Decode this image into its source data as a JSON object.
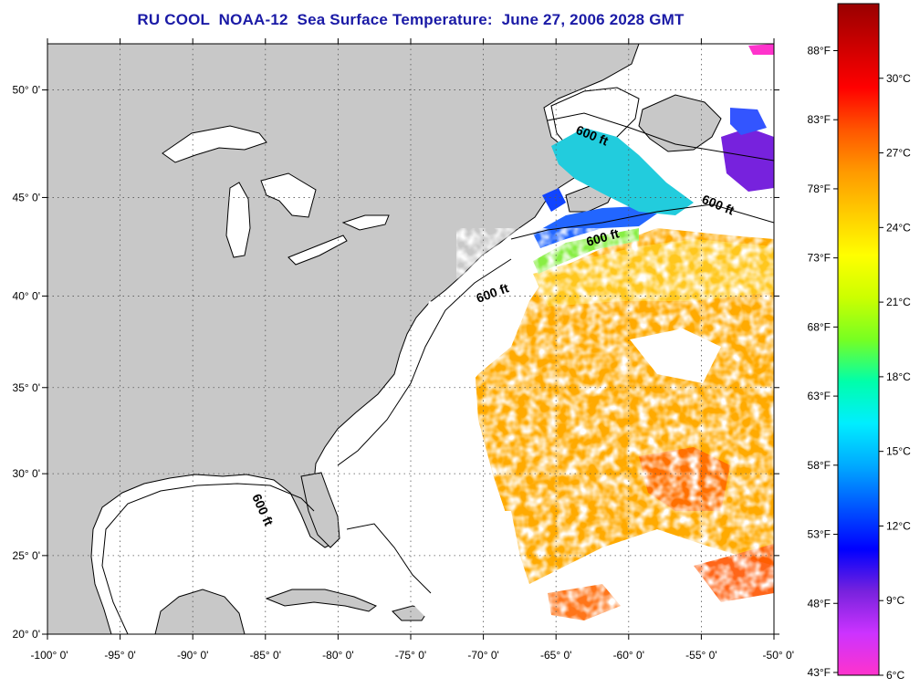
{
  "title": "RU COOL  NOAA-12  Sea Surface Temperature:  June 27, 2006 2028 GMT",
  "map": {
    "lon_range": [
      -100,
      -50
    ],
    "lat_range": [
      20,
      52
    ],
    "land_color": "#c8c8c8",
    "cloud_color": "#ffffff",
    "grid": "dotted",
    "lat_labels": [
      "20° 0'",
      "25° 0'",
      "30° 0'",
      "35° 0'",
      "40° 0'",
      "45° 0'",
      "50° 0'"
    ],
    "lon_labels": [
      "-100° 0'",
      "-95° 0'",
      "-90° 0'",
      "-85° 0'",
      "-80° 0'",
      "-75° 0'",
      "-70° 0'",
      "-65° 0'",
      "-60° 0'",
      "-55° 0'",
      "-50° 0'"
    ],
    "contour_labels": [
      "600 ft",
      "600 ft",
      "600 ft",
      "600 ft",
      "600 ft"
    ]
  },
  "colorbar": {
    "celsius_labels": [
      "30°C",
      "27°C",
      "24°C",
      "21°C",
      "18°C",
      "15°C",
      "12°C",
      "9°C",
      "6°C"
    ],
    "fahrenheit_labels": [
      "88°F",
      "83°F",
      "78°F",
      "73°F",
      "68°F",
      "63°F",
      "58°F",
      "53°F",
      "48°F",
      "43°F"
    ],
    "colors": [
      "#ff33cc",
      "#cc33ff",
      "#7722dd",
      "#0000ff",
      "#0055ff",
      "#00aaff",
      "#00eeff",
      "#00ffaa",
      "#77ff22",
      "#ccff00",
      "#ffff00",
      "#ffcc00",
      "#ff9900",
      "#ff5500",
      "#ff0000",
      "#cc0000",
      "#990000"
    ]
  }
}
